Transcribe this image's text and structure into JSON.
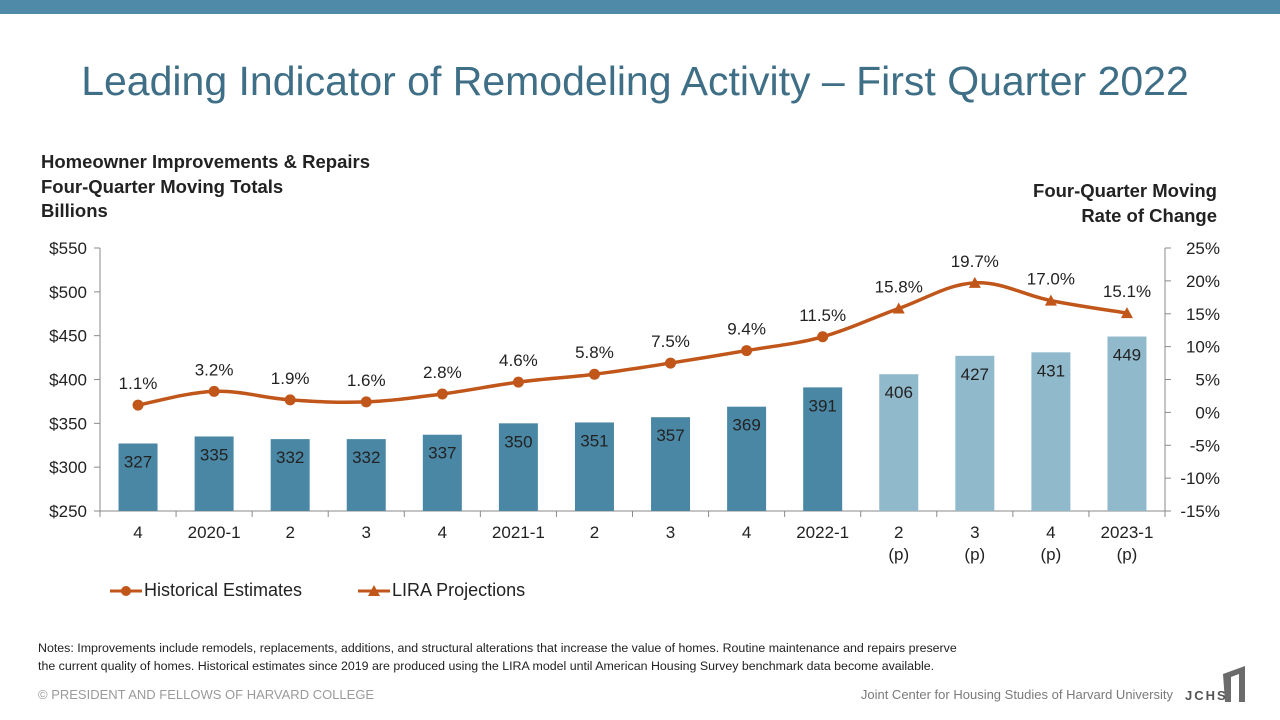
{
  "header": {
    "title": "Leading Indicator of Remodeling Activity – First Quarter 2022"
  },
  "left_axis_title": {
    "line1": "Homeowner Improvements & Repairs",
    "line2": "Four-Quarter Moving Totals",
    "line3": "Billions"
  },
  "right_axis_title": {
    "line1": "Four-Quarter Moving",
    "line2": "Rate of Change"
  },
  "legend": {
    "historical": "Historical Estimates",
    "projections": "LIRA Projections"
  },
  "notes": {
    "line1": "Notes: Improvements include remodels, replacements, additions, and structural alterations that increase the value of homes. Routine maintenance and repairs preserve",
    "line2": "the current quality of homes. Historical estimates since 2019 are produced using the LIRA model until American Housing Survey benchmark data become available."
  },
  "footer": {
    "copyright": "© PRESIDENT AND FELLOWS OF HARVARD COLLEGE",
    "org": "Joint Center for Housing Studies of Harvard University",
    "logo_text": "JCHS"
  },
  "colors": {
    "bar_historical": "#4a87a5",
    "bar_projection": "#91b9cc",
    "line": "#c0561a",
    "title": "#3f6f86",
    "axis": "#8a8a8a"
  },
  "chart_data": {
    "type": "bar",
    "categories": [
      [
        "4"
      ],
      [
        "2020-1"
      ],
      [
        "2"
      ],
      [
        "3"
      ],
      [
        "4"
      ],
      [
        "2021-1"
      ],
      [
        "2"
      ],
      [
        "3"
      ],
      [
        "4"
      ],
      [
        "2022-1"
      ],
      [
        "2",
        "(p)"
      ],
      [
        "3",
        "(p)"
      ],
      [
        "4",
        "(p)"
      ],
      [
        "2023-1",
        "(p)"
      ]
    ],
    "series": [
      {
        "kind": "bar",
        "axis": "left",
        "values": [
          327,
          335,
          332,
          332,
          337,
          350,
          351,
          357,
          369,
          391,
          406,
          427,
          431,
          449
        ],
        "labels": [
          "327",
          "335",
          "332",
          "332",
          "337",
          "350",
          "351",
          "357",
          "369",
          "391",
          "406",
          "427",
          "431",
          "449"
        ],
        "projected": [
          false,
          false,
          false,
          false,
          false,
          false,
          false,
          false,
          false,
          false,
          true,
          true,
          true,
          true
        ]
      },
      {
        "kind": "line",
        "axis": "right",
        "values": [
          1.1,
          3.2,
          1.9,
          1.6,
          2.8,
          4.6,
          5.8,
          7.5,
          9.4,
          11.5,
          15.8,
          19.7,
          17.0,
          15.1
        ],
        "labels": [
          "1.1%",
          "3.2%",
          "1.9%",
          "1.6%",
          "2.8%",
          "4.6%",
          "5.8%",
          "7.5%",
          "9.4%",
          "11.5%",
          "15.8%",
          "19.7%",
          "17.0%",
          "15.1%"
        ],
        "historical_count": 10
      }
    ],
    "y_left": {
      "min": 250,
      "max": 550,
      "step": 50,
      "ticks": [
        "$250",
        "$300",
        "$350",
        "$400",
        "$450",
        "$500",
        "$550"
      ]
    },
    "y_right": {
      "min": -15,
      "max": 25,
      "step": 5,
      "ticks": [
        "-15%",
        "-10%",
        "-5%",
        "0%",
        "5%",
        "10%",
        "15%",
        "20%",
        "25%"
      ]
    },
    "grid": false,
    "legend_position": "bottom-left"
  }
}
